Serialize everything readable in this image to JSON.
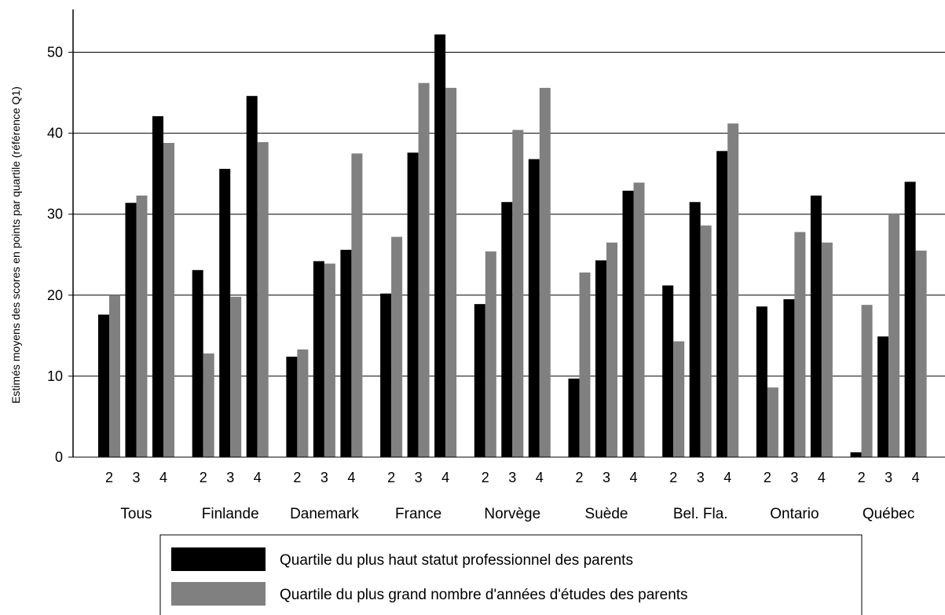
{
  "chart_data": {
    "type": "bar",
    "ylabel": "Estimés moyens des scores en points par quartile (référence Q1)",
    "ylim": [
      0,
      55
    ],
    "yticks": [
      0,
      10,
      20,
      30,
      40,
      50
    ],
    "grid": true,
    "legend_position": "bottom",
    "groups": [
      "Tous",
      "Finlande",
      "Danemark",
      "France",
      "Norvège",
      "Suède",
      "Bel. Fla.",
      "Ontario",
      "Québec"
    ],
    "quartiles": [
      "2",
      "3",
      "4"
    ],
    "series": [
      {
        "name": "Quartile du plus haut statut professionnel des parents",
        "color": "#000000",
        "values": [
          [
            17.6,
            31.4,
            42.1
          ],
          [
            23.1,
            35.6,
            44.6
          ],
          [
            12.4,
            24.2,
            25.6
          ],
          [
            20.2,
            37.6,
            52.2
          ],
          [
            18.9,
            31.5,
            36.8
          ],
          [
            9.7,
            24.3,
            32.9
          ],
          [
            21.2,
            31.5,
            37.8
          ],
          [
            18.6,
            19.5,
            32.3
          ],
          [
            0.6,
            14.9,
            34.0
          ]
        ]
      },
      {
        "name": "Quartile du plus grand nombre d'années d'études des parents",
        "color": "#808080",
        "values": [
          [
            20.0,
            32.3,
            38.8
          ],
          [
            12.8,
            19.8,
            38.9
          ],
          [
            13.3,
            23.9,
            37.5
          ],
          [
            27.2,
            46.2,
            45.6
          ],
          [
            25.4,
            40.4,
            45.6
          ],
          [
            22.8,
            26.5,
            33.9
          ],
          [
            14.3,
            28.6,
            41.2
          ],
          [
            8.6,
            27.8,
            26.5
          ],
          [
            18.8,
            30.1,
            25.5
          ]
        ]
      }
    ]
  }
}
